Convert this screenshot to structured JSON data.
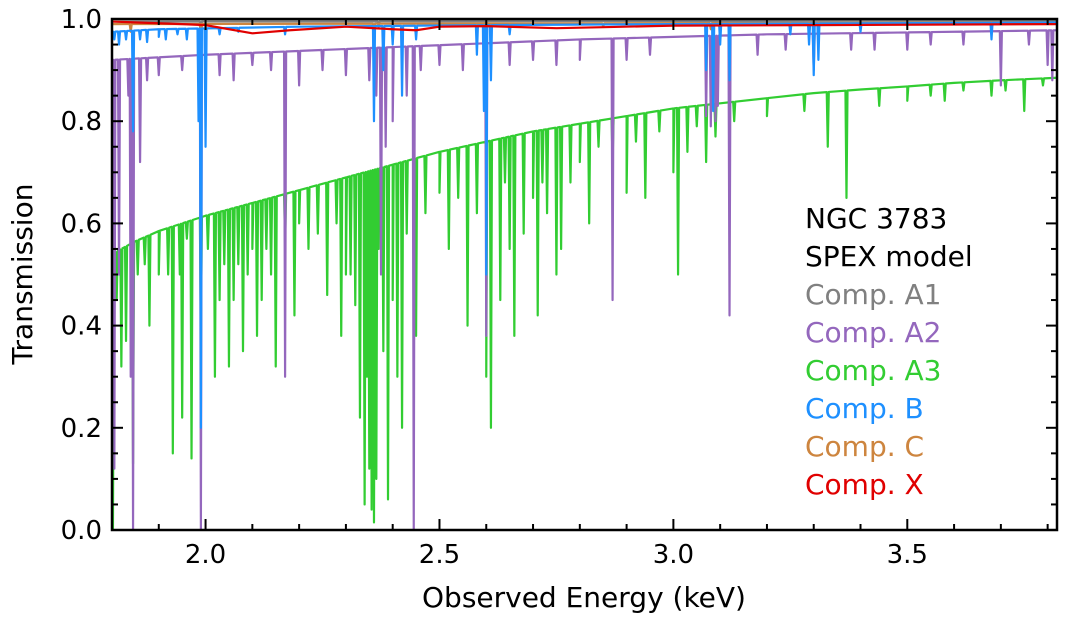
{
  "chart_data": {
    "type": "line",
    "title": "",
    "xlabel": "Observed Energy (keV)",
    "ylabel": "Transmission",
    "xlim": [
      1.8,
      3.82
    ],
    "ylim": [
      0.0,
      1.0
    ],
    "x_major_ticks": [
      2.0,
      2.5,
      3.0,
      3.5
    ],
    "x_tick_labels": [
      "2.0",
      "2.5",
      "3.0",
      "3.5"
    ],
    "y_major_ticks": [
      0.0,
      0.2,
      0.4,
      0.6,
      0.8,
      1.0
    ],
    "y_tick_labels": [
      "0.0",
      "0.2",
      "0.4",
      "0.6",
      "0.8",
      "1.0"
    ],
    "annotation_lines": [
      "NGC 3783",
      "SPEX model"
    ],
    "legend_position": "center-right",
    "series": [
      {
        "name": "Comp. A1",
        "color": "#808080",
        "continuum": [
          [
            1.8,
            0.995
          ],
          [
            3.82,
            0.997
          ]
        ],
        "lines": [
          [
            1.99,
            0.975
          ],
          [
            2.37,
            0.985
          ],
          [
            2.6,
            0.985
          ]
        ]
      },
      {
        "name": "Comp. A2",
        "color": "#9467bd",
        "continuum": [
          [
            1.8,
            0.92
          ],
          [
            2.0,
            0.93
          ],
          [
            2.4,
            0.945
          ],
          [
            2.8,
            0.96
          ],
          [
            3.2,
            0.97
          ],
          [
            3.6,
            0.975
          ],
          [
            3.82,
            0.978
          ]
        ],
        "lines": [
          [
            1.805,
            0.12
          ],
          [
            1.815,
            0.5
          ],
          [
            1.835,
            0.85
          ],
          [
            1.84,
            0.3
          ],
          [
            1.845,
            0.0
          ],
          [
            1.86,
            0.72
          ],
          [
            1.875,
            0.88
          ],
          [
            1.9,
            0.89
          ],
          [
            1.95,
            0.9
          ],
          [
            1.99,
            0.0
          ],
          [
            2.03,
            0.89
          ],
          [
            2.06,
            0.88
          ],
          [
            2.1,
            0.91
          ],
          [
            2.14,
            0.9
          ],
          [
            2.17,
            0.3
          ],
          [
            2.2,
            0.87
          ],
          [
            2.25,
            0.9
          ],
          [
            2.3,
            0.89
          ],
          [
            2.35,
            0.88
          ],
          [
            2.365,
            0.85
          ],
          [
            2.375,
            0.5
          ],
          [
            2.385,
            0.75
          ],
          [
            2.4,
            0.8
          ],
          [
            2.43,
            0.85
          ],
          [
            2.445,
            0.0
          ],
          [
            2.46,
            0.9
          ],
          [
            2.5,
            0.91
          ],
          [
            2.55,
            0.9
          ],
          [
            2.6,
            0.38
          ],
          [
            2.65,
            0.91
          ],
          [
            2.7,
            0.92
          ],
          [
            2.75,
            0.91
          ],
          [
            2.8,
            0.92
          ],
          [
            2.87,
            0.45
          ],
          [
            2.9,
            0.92
          ],
          [
            2.95,
            0.93
          ],
          [
            3.07,
            0.81
          ],
          [
            3.08,
            0.79
          ],
          [
            3.09,
            0.8
          ],
          [
            3.095,
            0.83
          ],
          [
            3.12,
            0.42
          ],
          [
            3.18,
            0.93
          ],
          [
            3.24,
            0.94
          ],
          [
            3.3,
            0.9
          ],
          [
            3.38,
            0.94
          ],
          [
            3.43,
            0.94
          ],
          [
            3.5,
            0.94
          ],
          [
            3.55,
            0.95
          ],
          [
            3.62,
            0.95
          ],
          [
            3.7,
            0.87
          ],
          [
            3.76,
            0.95
          ],
          [
            3.8,
            0.91
          ],
          [
            3.81,
            0.88
          ]
        ]
      },
      {
        "name": "Comp. A3",
        "color": "#32cd32",
        "continuum": [
          [
            1.8,
            0.54
          ],
          [
            1.85,
            0.565
          ],
          [
            1.9,
            0.585
          ],
          [
            2.0,
            0.615
          ],
          [
            2.1,
            0.64
          ],
          [
            2.2,
            0.665
          ],
          [
            2.3,
            0.69
          ],
          [
            2.4,
            0.715
          ],
          [
            2.5,
            0.74
          ],
          [
            2.6,
            0.76
          ],
          [
            2.7,
            0.78
          ],
          [
            2.8,
            0.795
          ],
          [
            2.9,
            0.81
          ],
          [
            3.0,
            0.825
          ],
          [
            3.1,
            0.835
          ],
          [
            3.2,
            0.845
          ],
          [
            3.3,
            0.855
          ],
          [
            3.4,
            0.862
          ],
          [
            3.5,
            0.868
          ],
          [
            3.6,
            0.875
          ],
          [
            3.7,
            0.88
          ],
          [
            3.82,
            0.885
          ]
        ],
        "lines": [
          [
            1.802,
            0.0
          ],
          [
            1.81,
            0.45
          ],
          [
            1.82,
            0.32
          ],
          [
            1.83,
            0.37
          ],
          [
            1.845,
            0.13
          ],
          [
            1.855,
            0.5
          ],
          [
            1.87,
            0.52
          ],
          [
            1.88,
            0.4
          ],
          [
            1.9,
            0.5
          ],
          [
            1.92,
            0.5
          ],
          [
            1.93,
            0.15
          ],
          [
            1.945,
            0.5
          ],
          [
            1.95,
            0.22
          ],
          [
            1.96,
            0.57
          ],
          [
            1.97,
            0.14
          ],
          [
            1.99,
            0.38
          ],
          [
            2.005,
            0.55
          ],
          [
            2.02,
            0.3
          ],
          [
            2.03,
            0.45
          ],
          [
            2.04,
            0.52
          ],
          [
            2.05,
            0.32
          ],
          [
            2.06,
            0.45
          ],
          [
            2.07,
            0.52
          ],
          [
            2.08,
            0.35
          ],
          [
            2.09,
            0.5
          ],
          [
            2.1,
            0.55
          ],
          [
            2.11,
            0.38
          ],
          [
            2.12,
            0.45
          ],
          [
            2.13,
            0.55
          ],
          [
            2.14,
            0.5
          ],
          [
            2.15,
            0.32
          ],
          [
            2.17,
            0.56
          ],
          [
            2.19,
            0.42
          ],
          [
            2.2,
            0.6
          ],
          [
            2.22,
            0.55
          ],
          [
            2.24,
            0.58
          ],
          [
            2.26,
            0.46
          ],
          [
            2.28,
            0.6
          ],
          [
            2.29,
            0.38
          ],
          [
            2.3,
            0.5
          ],
          [
            2.31,
            0.5
          ],
          [
            2.32,
            0.44
          ],
          [
            2.33,
            0.22
          ],
          [
            2.34,
            0.05
          ],
          [
            2.345,
            0.3
          ],
          [
            2.35,
            0.12
          ],
          [
            2.355,
            0.04
          ],
          [
            2.36,
            0.015
          ],
          [
            2.365,
            0.1
          ],
          [
            2.37,
            0.55
          ],
          [
            2.38,
            0.35
          ],
          [
            2.39,
            0.06
          ],
          [
            2.4,
            0.45
          ],
          [
            2.41,
            0.3
          ],
          [
            2.42,
            0.2
          ],
          [
            2.43,
            0.58
          ],
          [
            2.45,
            0.38
          ],
          [
            2.47,
            0.62
          ],
          [
            2.5,
            0.66
          ],
          [
            2.52,
            0.55
          ],
          [
            2.54,
            0.65
          ],
          [
            2.56,
            0.4
          ],
          [
            2.58,
            0.62
          ],
          [
            2.6,
            0.3
          ],
          [
            2.61,
            0.2
          ],
          [
            2.63,
            0.45
          ],
          [
            2.64,
            0.68
          ],
          [
            2.65,
            0.55
          ],
          [
            2.66,
            0.38
          ],
          [
            2.68,
            0.58
          ],
          [
            2.7,
            0.65
          ],
          [
            2.71,
            0.42
          ],
          [
            2.72,
            0.68
          ],
          [
            2.73,
            0.62
          ],
          [
            2.75,
            0.5
          ],
          [
            2.76,
            0.55
          ],
          [
            2.78,
            0.68
          ],
          [
            2.8,
            0.72
          ],
          [
            2.82,
            0.6
          ],
          [
            2.84,
            0.75
          ],
          [
            2.87,
            0.72
          ],
          [
            2.9,
            0.66
          ],
          [
            2.92,
            0.76
          ],
          [
            2.94,
            0.65
          ],
          [
            2.97,
            0.78
          ],
          [
            3.0,
            0.7
          ],
          [
            3.01,
            0.5
          ],
          [
            3.03,
            0.74
          ],
          [
            3.05,
            0.79
          ],
          [
            3.07,
            0.72
          ],
          [
            3.09,
            0.77
          ],
          [
            3.13,
            0.8
          ],
          [
            3.2,
            0.81
          ],
          [
            3.28,
            0.82
          ],
          [
            3.33,
            0.75
          ],
          [
            3.37,
            0.65
          ],
          [
            3.44,
            0.83
          ],
          [
            3.5,
            0.84
          ],
          [
            3.55,
            0.85
          ],
          [
            3.58,
            0.84
          ],
          [
            3.62,
            0.86
          ],
          [
            3.68,
            0.85
          ],
          [
            3.71,
            0.86
          ],
          [
            3.75,
            0.82
          ],
          [
            3.79,
            0.87
          ]
        ]
      },
      {
        "name": "Comp. B",
        "color": "#1e90ff",
        "continuum": [
          [
            1.8,
            0.975
          ],
          [
            1.9,
            0.98
          ],
          [
            2.2,
            0.985
          ],
          [
            2.6,
            0.988
          ],
          [
            3.0,
            0.99
          ],
          [
            3.82,
            0.993
          ]
        ],
        "lines": [
          [
            1.805,
            0.96
          ],
          [
            1.815,
            0.95
          ],
          [
            1.83,
            0.96
          ],
          [
            1.845,
            0.78
          ],
          [
            1.86,
            0.96
          ],
          [
            1.875,
            0.955
          ],
          [
            1.9,
            0.965
          ],
          [
            1.915,
            0.96
          ],
          [
            1.94,
            0.97
          ],
          [
            1.96,
            0.96
          ],
          [
            1.985,
            0.8
          ],
          [
            1.99,
            0.2
          ],
          [
            2.0,
            0.75
          ],
          [
            2.03,
            0.97
          ],
          [
            2.07,
            0.975
          ],
          [
            2.17,
            0.97
          ],
          [
            2.36,
            0.8
          ],
          [
            2.38,
            0.9
          ],
          [
            2.4,
            0.95
          ],
          [
            2.42,
            0.85
          ],
          [
            2.45,
            0.96
          ],
          [
            2.58,
            0.93
          ],
          [
            2.595,
            0.82
          ],
          [
            2.6,
            0.5
          ],
          [
            2.61,
            0.88
          ],
          [
            2.65,
            0.97
          ],
          [
            3.07,
            0.9
          ],
          [
            3.085,
            0.82
          ],
          [
            3.1,
            0.95
          ],
          [
            3.12,
            0.88
          ],
          [
            3.25,
            0.97
          ],
          [
            3.29,
            0.95
          ],
          [
            3.3,
            0.89
          ],
          [
            3.31,
            0.92
          ],
          [
            3.4,
            0.975
          ],
          [
            3.68,
            0.96
          ]
        ]
      },
      {
        "name": "Comp. C",
        "color": "#cd853f",
        "continuum": [
          [
            1.8,
            0.99
          ],
          [
            3.82,
            0.993
          ]
        ],
        "lines": [
          [
            1.84,
            0.975
          ],
          [
            1.99,
            0.95
          ],
          [
            2.36,
            0.975
          ],
          [
            2.6,
            0.97
          ],
          [
            2.85,
            0.985
          ],
          [
            3.08,
            0.98
          ],
          [
            3.3,
            0.98
          ]
        ]
      },
      {
        "name": "Comp. X",
        "color": "#e00000",
        "continuum": [
          [
            1.8,
            0.995
          ],
          [
            1.95,
            0.99
          ],
          [
            2.0,
            0.988
          ],
          [
            2.1,
            0.972
          ],
          [
            2.18,
            0.978
          ],
          [
            2.3,
            0.985
          ],
          [
            2.4,
            0.98
          ],
          [
            2.45,
            0.978
          ],
          [
            2.5,
            0.985
          ],
          [
            2.6,
            0.986
          ],
          [
            2.75,
            0.982
          ],
          [
            2.85,
            0.984
          ],
          [
            3.0,
            0.987
          ],
          [
            3.3,
            0.988
          ],
          [
            3.82,
            0.99
          ]
        ],
        "lines": []
      }
    ],
    "draw_order": [
      "Comp. A3",
      "Comp. A2",
      "Comp. A1",
      "Comp. C",
      "Comp. B",
      "Comp. X"
    ]
  }
}
